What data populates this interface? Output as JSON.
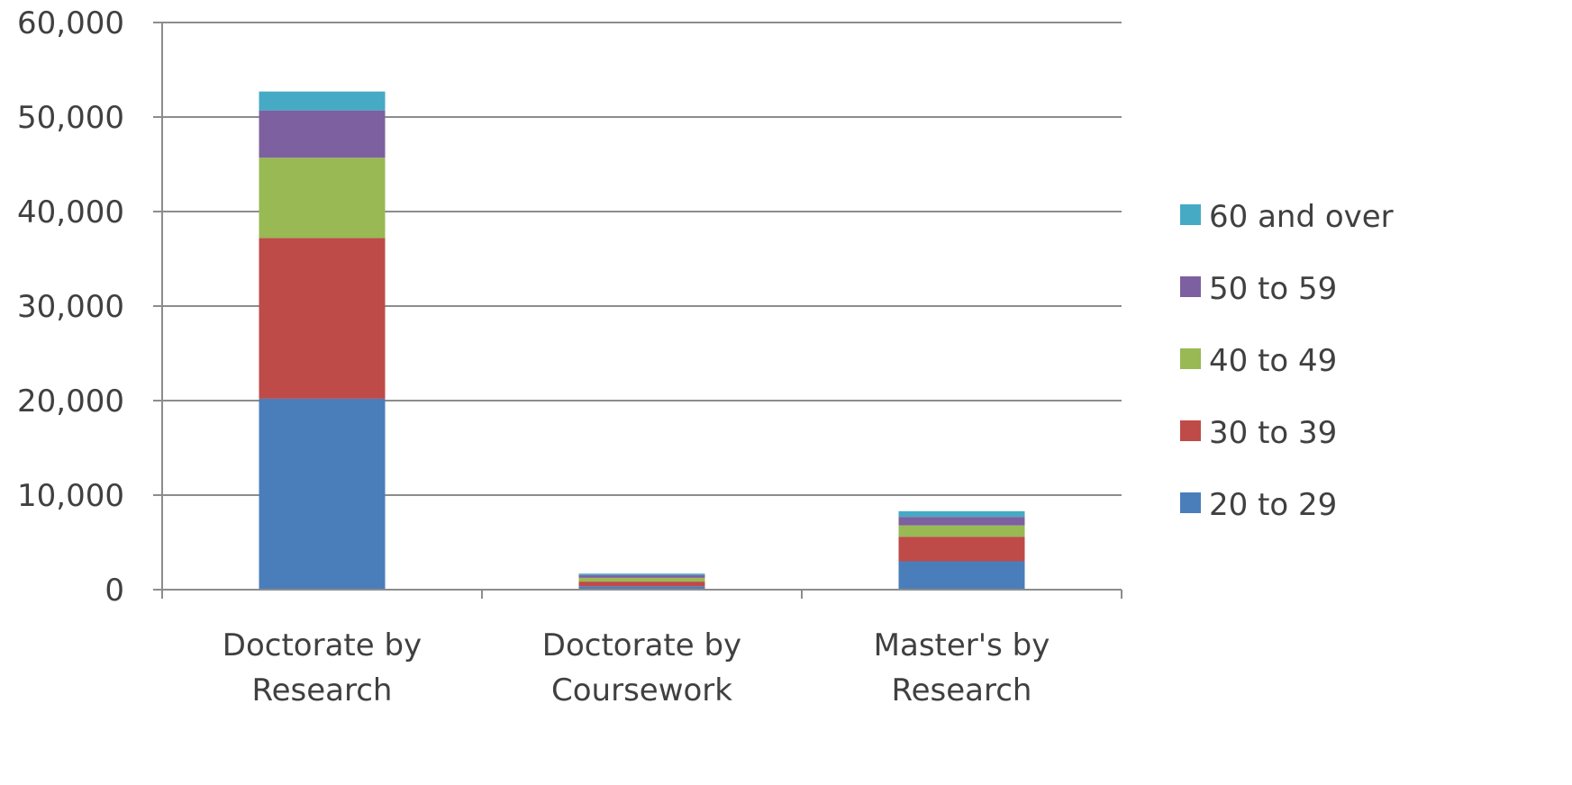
{
  "chart_data": {
    "type": "bar",
    "stacked": true,
    "categories": [
      [
        "Doctorate by",
        "Research"
      ],
      [
        "Doctorate by",
        "Coursework"
      ],
      [
        "Master's by",
        "Research"
      ]
    ],
    "series": [
      {
        "name": "20 to 29",
        "color": "#4a7ebb",
        "values": [
          20200,
          350,
          3000
        ]
      },
      {
        "name": "30 to 39",
        "color": "#be4b48",
        "values": [
          17000,
          500,
          2600
        ]
      },
      {
        "name": "40 to 49",
        "color": "#98b954",
        "values": [
          8500,
          400,
          1200
        ]
      },
      {
        "name": "50 to 59",
        "color": "#7d60a0",
        "values": [
          5000,
          300,
          900
        ]
      },
      {
        "name": "60 and over",
        "color": "#46aac5",
        "values": [
          2000,
          150,
          600
        ]
      }
    ],
    "ylim": [
      0,
      60000
    ],
    "yticks": [
      "0",
      "10,000",
      "20,000",
      "30,000",
      "40,000",
      "50,000",
      "60,000"
    ],
    "grid": true,
    "legend_position": "right",
    "legend_order": [
      "60 and over",
      "50 to 59",
      "40 to 49",
      "30 to 39",
      "20 to 29"
    ]
  }
}
